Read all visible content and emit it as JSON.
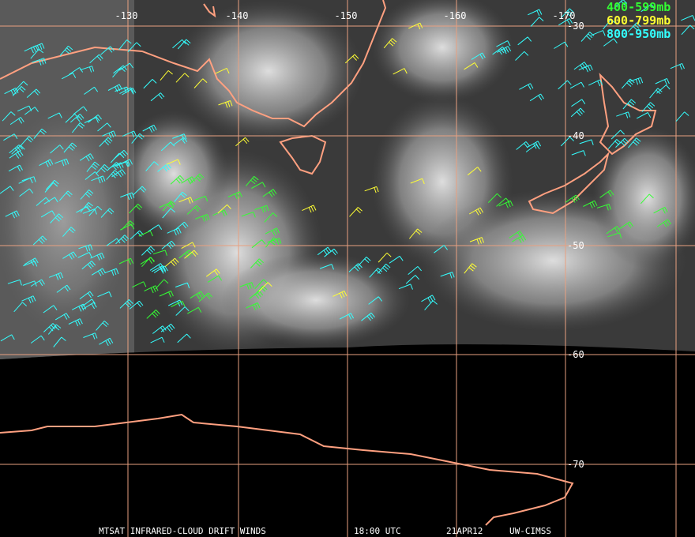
{
  "map": {
    "longitude_labels": [
      "-130",
      "-140",
      "-150",
      "-160",
      "-170"
    ],
    "latitude_labels": [
      "-30",
      "-40",
      "-50",
      "-60",
      "-70"
    ],
    "legend": [
      {
        "label": "400-599mb",
        "color": "#33ff33"
      },
      {
        "label": "600-799mb",
        "color": "#ffff33"
      },
      {
        "label": "800-950mb",
        "color": "#33ffff"
      }
    ],
    "footer": [
      "MTSAT INFRARED-CLOUD DRIFT WINDS",
      "18:00 UTC",
      "21APR12",
      "UW-CIMSS"
    ]
  }
}
